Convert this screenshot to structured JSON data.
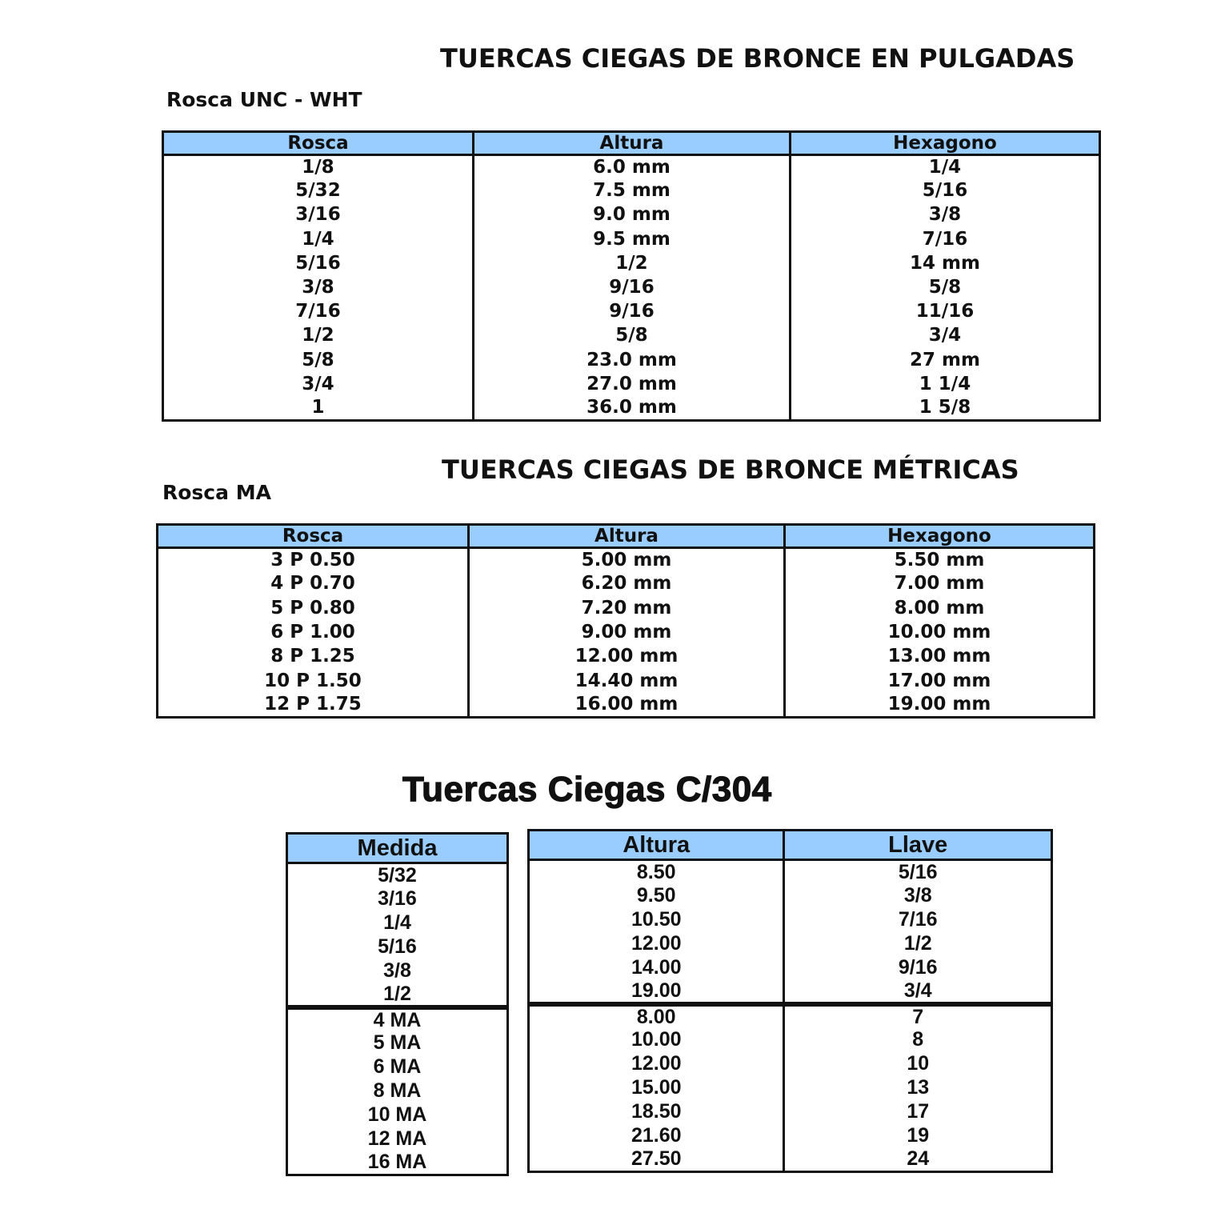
{
  "section_inch": {
    "title": "TUERCAS CIEGAS DE BRONCE EN PULGADAS",
    "subtitle": "Rosca UNC - WHT",
    "columns": [
      "Rosca",
      "Altura",
      "Hexagono"
    ],
    "rows": [
      [
        "1/8",
        "6.0 mm",
        "1/4"
      ],
      [
        "5/32",
        "7.5 mm",
        "5/16"
      ],
      [
        "3/16",
        "9.0 mm",
        "3/8"
      ],
      [
        "1/4",
        "9.5 mm",
        "7/16"
      ],
      [
        "5/16",
        "1/2",
        "14 mm"
      ],
      [
        "3/8",
        "9/16",
        "5/8"
      ],
      [
        "7/16",
        "9/16",
        "11/16"
      ],
      [
        "1/2",
        "5/8",
        "3/4"
      ],
      [
        "5/8",
        "23.0 mm",
        "27 mm"
      ],
      [
        "3/4",
        "27.0 mm",
        "1 1/4"
      ],
      [
        "1",
        "36.0 mm",
        "1 5/8"
      ]
    ]
  },
  "section_metric": {
    "title": "TUERCAS CIEGAS DE BRONCE MÉTRICAS",
    "subtitle": "Rosca MA",
    "columns": [
      "Rosca",
      "Altura",
      "Hexagono"
    ],
    "rows": [
      [
        "3 P 0.50",
        "5.00 mm",
        "5.50 mm"
      ],
      [
        "4 P 0.70",
        "6.20 mm",
        "7.00 mm"
      ],
      [
        "5 P 0.80",
        "7.20 mm",
        "8.00 mm"
      ],
      [
        "6 P 1.00",
        "9.00 mm",
        "10.00 mm"
      ],
      [
        "8 P 1.25",
        "12.00 mm",
        "13.00 mm"
      ],
      [
        "10 P 1.50",
        "14.40 mm",
        "17.00 mm"
      ],
      [
        "12 P 1.75",
        "16.00 mm",
        "19.00 mm"
      ]
    ]
  },
  "section_304": {
    "title": "Tuercas Ciegas C/304",
    "medida_table": {
      "columns": [
        "Medida"
      ],
      "groups": [
        [
          [
            "5/32"
          ],
          [
            "3/16"
          ],
          [
            "1/4"
          ],
          [
            "5/16"
          ],
          [
            "3/8"
          ],
          [
            "1/2"
          ]
        ],
        [
          [
            "4 MA"
          ],
          [
            "5 MA"
          ],
          [
            "6 MA"
          ],
          [
            "8 MA"
          ],
          [
            "10 MA"
          ],
          [
            "12 MA"
          ],
          [
            "16 MA"
          ]
        ]
      ]
    },
    "dims_table": {
      "columns": [
        "Altura",
        "Llave"
      ],
      "groups": [
        [
          [
            "8.50",
            "5/16"
          ],
          [
            "9.50",
            "3/8"
          ],
          [
            "10.50",
            "7/16"
          ],
          [
            "12.00",
            "1/2"
          ],
          [
            "14.00",
            "9/16"
          ],
          [
            "19.00",
            "3/4"
          ]
        ],
        [
          [
            "8.00",
            "7"
          ],
          [
            "10.00",
            "8"
          ],
          [
            "12.00",
            "10"
          ],
          [
            "15.00",
            "13"
          ],
          [
            "18.50",
            "17"
          ],
          [
            "21.60",
            "19"
          ],
          [
            "27.50",
            "24"
          ]
        ]
      ]
    }
  },
  "colors": {
    "header_fill": "#99ccff",
    "border": "#111111"
  }
}
